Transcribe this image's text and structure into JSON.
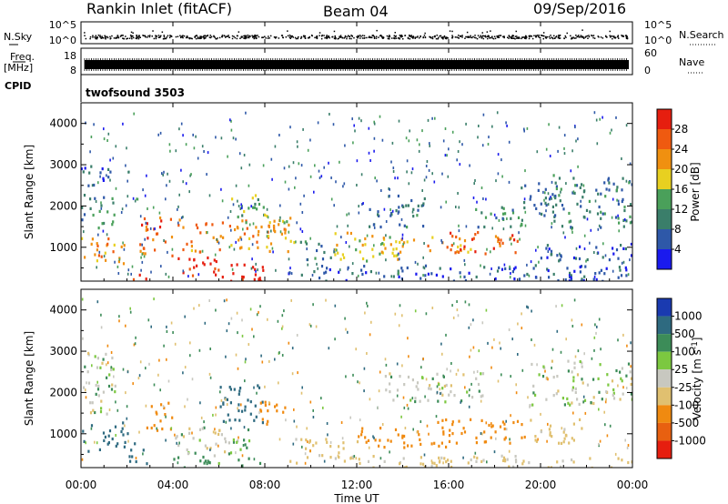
{
  "header": {
    "title": "Rankin Inlet (fitACF)",
    "beam": "Beam 04",
    "date": "09/Sep/2016"
  },
  "noise_panel": {
    "left_label": "N.Sky",
    "right_label": "N.Search",
    "left_ticks": [
      "10^5",
      "10^0"
    ],
    "right_ticks": [
      "10^5",
      "10^0"
    ]
  },
  "freq_panel": {
    "left_label_top": "Freq.",
    "left_label_unit": "[MHz]",
    "left_ticks": [
      "18",
      "8"
    ],
    "right_label": "Nave",
    "right_ticks": [
      "60",
      "0"
    ]
  },
  "cpid_panel": {
    "label": "CPID",
    "value": "twofsound 3503"
  },
  "colors": {
    "power": [
      "#1a1aee",
      "#2e58a8",
      "#3a7e6a",
      "#4aa05a",
      "#e8d020",
      "#f09010",
      "#ef5a10",
      "#e61e0f"
    ],
    "velocity": [
      "#1a3ab0",
      "#2e6a80",
      "#3c8c58",
      "#7cc840",
      "#c8c8c0",
      "#e0c070",
      "#f08a10",
      "#e86010",
      "#e61e0f"
    ]
  },
  "chart_data": [
    {
      "type": "heatmap",
      "title": "",
      "xlabel": "Time UT",
      "ylabel": "Slant Range [km]",
      "xlim": [
        "00:00",
        "24:00"
      ],
      "ylim": [
        180,
        4500
      ],
      "x_ticks": [
        "00:00",
        "04:00",
        "08:00",
        "12:00",
        "16:00",
        "20:00",
        "00:00"
      ],
      "y_ticks": [
        1000,
        2000,
        3000,
        4000
      ],
      "colorbar": {
        "label": "Power [dB]",
        "ticks": [
          4,
          8,
          12,
          16,
          20,
          24,
          28
        ],
        "range": [
          0,
          30
        ]
      },
      "regions": [
        {
          "t0": 0.0,
          "t1": 2.0,
          "r0": 600,
          "r1": 1300,
          "value": 20
        },
        {
          "t0": 0.0,
          "t1": 1.5,
          "r0": 1500,
          "r1": 2300,
          "value": 10
        },
        {
          "t0": 0.0,
          "t1": 1.3,
          "r0": 2400,
          "r1": 3000,
          "value": 6
        },
        {
          "t0": 2.5,
          "t1": 4.0,
          "r0": 800,
          "r1": 1800,
          "value": 24
        },
        {
          "t0": 2.0,
          "t1": 2.8,
          "r0": 250,
          "r1": 450,
          "value": 27
        },
        {
          "t0": 4.0,
          "t1": 6.0,
          "r0": 300,
          "r1": 800,
          "value": 26
        },
        {
          "t0": 5.5,
          "t1": 8.0,
          "r0": 200,
          "r1": 700,
          "value": 29
        },
        {
          "t0": 4.2,
          "t1": 9.0,
          "r0": 900,
          "r1": 1700,
          "value": 22
        },
        {
          "t0": 6.5,
          "t1": 8.0,
          "r0": 1600,
          "r1": 2300,
          "value": 14
        },
        {
          "t0": 8.0,
          "t1": 9.3,
          "r0": 1100,
          "r1": 1800,
          "value": 18
        },
        {
          "t0": 9.5,
          "t1": 11.0,
          "r0": 700,
          "r1": 1200,
          "value": 9
        },
        {
          "t0": 11.0,
          "t1": 14.0,
          "r0": 700,
          "r1": 1400,
          "value": 17
        },
        {
          "t0": 12.5,
          "t1": 15.0,
          "r0": 1500,
          "r1": 2300,
          "value": 8
        },
        {
          "t0": 13.0,
          "t1": 17.0,
          "r0": 900,
          "r1": 1300,
          "value": 20
        },
        {
          "t0": 16.0,
          "t1": 19.0,
          "r0": 850,
          "r1": 1400,
          "value": 25
        },
        {
          "t0": 17.0,
          "t1": 19.5,
          "r0": 1500,
          "r1": 2000,
          "value": 10
        },
        {
          "t0": 19.0,
          "t1": 21.0,
          "r0": 1800,
          "r1": 2600,
          "value": 8
        },
        {
          "t0": 20.5,
          "t1": 24.0,
          "r0": 1500,
          "r1": 2800,
          "value": 9
        },
        {
          "t0": 19.5,
          "t1": 24.0,
          "r0": 700,
          "r1": 1100,
          "value": 6
        },
        {
          "t0": 9.0,
          "t1": 24.0,
          "r0": 200,
          "r1": 600,
          "value": 5
        }
      ]
    },
    {
      "type": "heatmap",
      "title": "",
      "xlabel": "Time UT",
      "ylabel": "Slant Range [km]",
      "xlim": [
        "00:00",
        "24:00"
      ],
      "ylim": [
        180,
        4500
      ],
      "x_ticks": [
        "00:00",
        "04:00",
        "08:00",
        "12:00",
        "16:00",
        "20:00",
        "00:00"
      ],
      "y_ticks": [
        1000,
        2000,
        3000,
        4000
      ],
      "colorbar": {
        "label": "Velocity [m s^-1]",
        "ticks": [
          1000,
          500,
          100,
          25,
          -25,
          -100,
          -500,
          -1000
        ]
      },
      "regions": [
        {
          "t0": 0.0,
          "t1": 1.5,
          "r0": 2200,
          "r1": 3000,
          "value": 0
        },
        {
          "t0": 0.0,
          "t1": 1.6,
          "r0": 1500,
          "r1": 2200,
          "value": 0
        },
        {
          "t0": 0.0,
          "t1": 2.0,
          "r0": 600,
          "r1": 1300,
          "value": 300
        },
        {
          "t0": 2.0,
          "t1": 3.0,
          "r0": 300,
          "r1": 800,
          "value": 150
        },
        {
          "t0": 2.7,
          "t1": 4.0,
          "r0": 1100,
          "r1": 1800,
          "value": -300
        },
        {
          "t0": 4.0,
          "t1": 7.5,
          "r0": 500,
          "r1": 1200,
          "value": 0
        },
        {
          "t0": 6.0,
          "t1": 8.0,
          "r0": 1200,
          "r1": 2200,
          "value": 200
        },
        {
          "t0": 7.5,
          "t1": 9.0,
          "r0": 1200,
          "r1": 1800,
          "value": -150
        },
        {
          "t0": 4.0,
          "t1": 8.0,
          "r0": 180,
          "r1": 500,
          "value": 60
        },
        {
          "t0": 9.0,
          "t1": 12.0,
          "r0": 300,
          "r1": 900,
          "value": -60
        },
        {
          "t0": 12.0,
          "t1": 16.0,
          "r0": 700,
          "r1": 1200,
          "value": -150
        },
        {
          "t0": 15.5,
          "t1": 19.5,
          "r0": 800,
          "r1": 1400,
          "value": -350
        },
        {
          "t0": 13.0,
          "t1": 17.5,
          "r0": 1800,
          "r1": 2500,
          "value": 0
        },
        {
          "t0": 19.5,
          "t1": 24.0,
          "r0": 1700,
          "r1": 2800,
          "value": 0
        },
        {
          "t0": 19.5,
          "t1": 22.0,
          "r0": 800,
          "r1": 1400,
          "value": -60
        },
        {
          "t0": 12.0,
          "t1": 24.0,
          "r0": 180,
          "r1": 500,
          "value": -40
        }
      ]
    }
  ]
}
